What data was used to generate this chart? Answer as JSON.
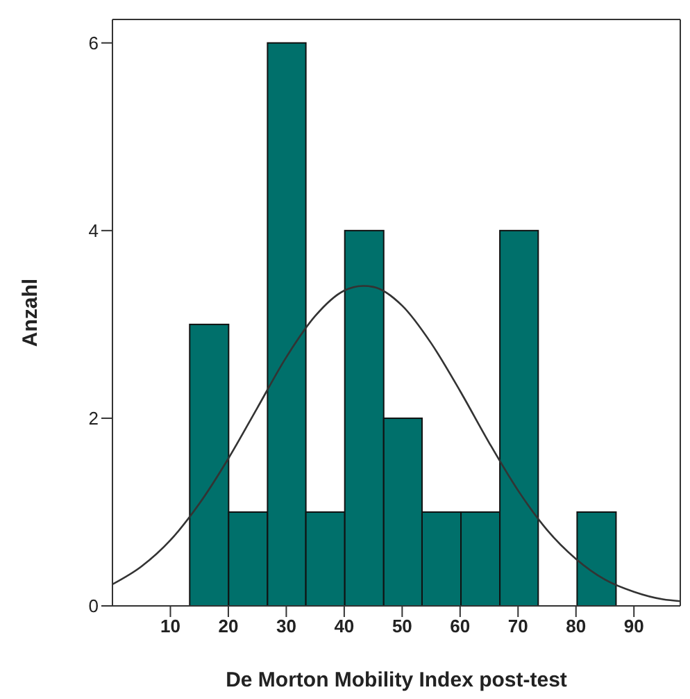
{
  "chart_data": {
    "type": "histogram",
    "xlabel": "De Morton Mobility Index post-test",
    "ylabel": "Anzahl",
    "series": [
      {
        "color": "#00706b",
        "bins": [
          13.3,
          20,
          26.7,
          33.3,
          40,
          46.7,
          53.3,
          60,
          66.7,
          73.3,
          80,
          86.7
        ],
        "values": [
          3,
          1,
          6,
          1,
          4,
          2,
          1,
          1,
          4,
          0,
          1
        ]
      },
      {
        "type": "line",
        "color": "#333333",
        "x": [
          0,
          5,
          10,
          15,
          20,
          25,
          30,
          35,
          40,
          43.3,
          45,
          50,
          55,
          60,
          65,
          70,
          75,
          80,
          85,
          90,
          95,
          98
        ],
        "values": [
          0.23,
          0.42,
          0.7,
          1.09,
          1.57,
          2.11,
          2.65,
          3.09,
          3.36,
          3.41,
          3.4,
          3.2,
          2.8,
          2.29,
          1.74,
          1.23,
          0.81,
          0.5,
          0.28,
          0.15,
          0.07,
          0.05
        ]
      }
    ],
    "xlim": [
      0,
      98
    ],
    "xticks": [
      10,
      20,
      30,
      40,
      50,
      60,
      70,
      80,
      90
    ],
    "ylim": [
      0,
      6.25
    ],
    "yticks": [
      0,
      2,
      4,
      6
    ],
    "marker": "none",
    "line_style": "solid"
  }
}
